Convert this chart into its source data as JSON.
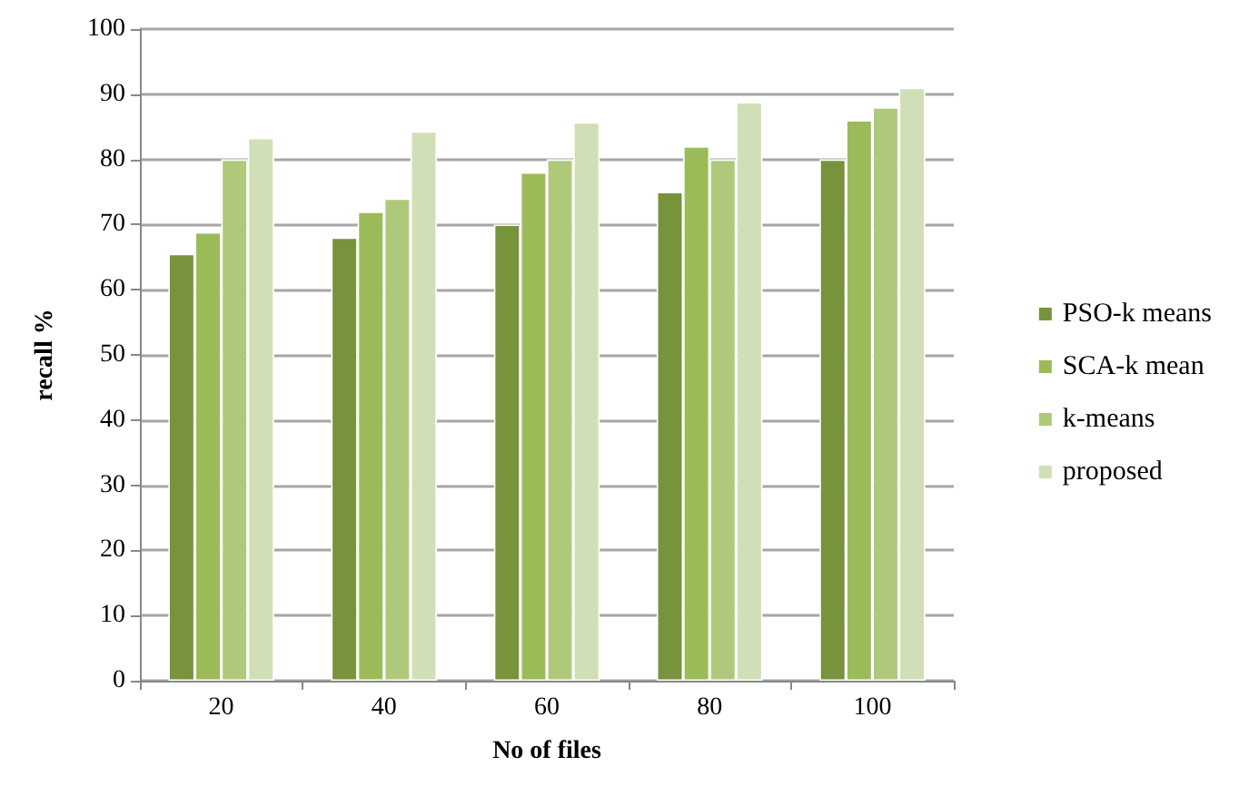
{
  "chart_data": {
    "type": "bar",
    "xlabel": "No of files",
    "ylabel": "recall %",
    "categories": [
      "20",
      "40",
      "60",
      "80",
      "100"
    ],
    "series": [
      {
        "name": "PSO-k means",
        "color": "#77933c",
        "values": [
          65.5,
          68,
          70,
          75,
          80
        ]
      },
      {
        "name": "SCA-k mean",
        "color": "#9bbb59",
        "values": [
          68.8,
          72,
          78,
          82,
          86
        ]
      },
      {
        "name": "k-means",
        "color": "#afc97a",
        "values": [
          80,
          74,
          80,
          80,
          88
        ]
      },
      {
        "name": "proposed",
        "color": "#d0dfb6",
        "values": [
          83.3,
          84.3,
          85.7,
          88.8,
          91
        ]
      }
    ],
    "ylim": [
      0,
      100
    ],
    "yticks": [
      0,
      10,
      20,
      30,
      40,
      50,
      60,
      70,
      80,
      90,
      100
    ],
    "grid": "y",
    "legend": "right"
  }
}
